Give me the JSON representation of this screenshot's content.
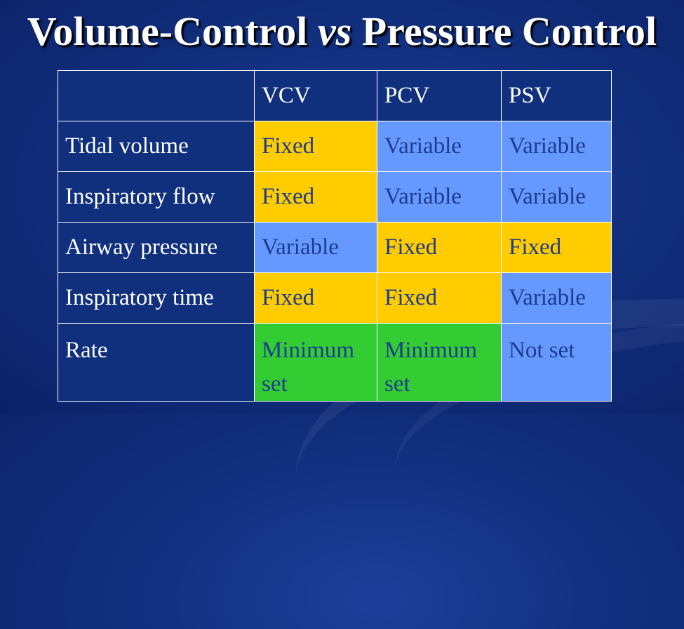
{
  "title": {
    "part1": "Volume-Control ",
    "part2": "vs",
    "part3": " Pressure Control"
  },
  "table": {
    "headers": [
      "",
      "VCV",
      "PCV",
      "PSV"
    ],
    "rows": [
      {
        "label": "Tidal volume",
        "cells": [
          "Fixed",
          "Variable",
          "Variable"
        ]
      },
      {
        "label": "Inspiratory flow",
        "cells": [
          "Fixed",
          "Variable",
          "Variable"
        ]
      },
      {
        "label": "Airway pressure",
        "cells": [
          "Variable",
          "Fixed",
          "Fixed"
        ]
      },
      {
        "label": "Inspiratory time",
        "cells": [
          "Fixed",
          "Fixed",
          "Variable"
        ]
      },
      {
        "label": "Rate",
        "cells": [
          "Minimum set",
          "Minimum set",
          "Not set"
        ]
      }
    ]
  },
  "colors": {
    "background": "#12307f",
    "fixed": "#ffcc00",
    "variable": "#6699ff",
    "minimum_set": "#33cc33",
    "text_on_color": "#1d3c8e"
  }
}
